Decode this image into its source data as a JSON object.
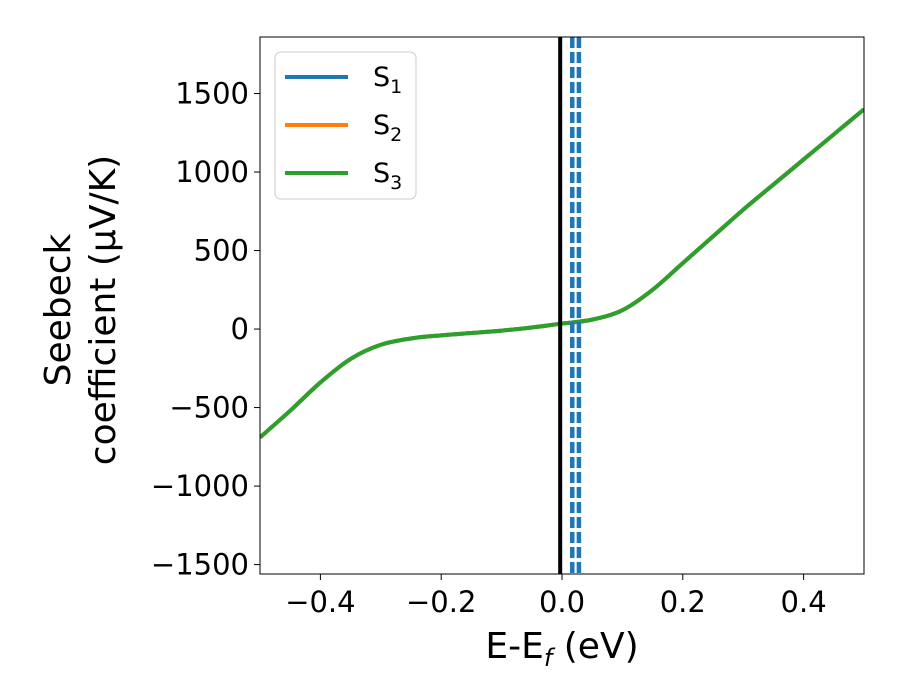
{
  "chart_data": {
    "type": "line",
    "xlabel": "E-E",
    "xlabel_sub": "f",
    "xlabel_unit": " (eV)",
    "ylabel_line1": "Seebeck",
    "ylabel_line2": "coefficient  (μV/K)",
    "xlim": [
      -0.5,
      0.5
    ],
    "ylim": [
      -1560,
      1860
    ],
    "x_ticks": [
      -0.4,
      -0.2,
      0.0,
      0.2,
      0.4
    ],
    "x_tick_labels": [
      "−0.4",
      "−0.2",
      "0.0",
      "0.2",
      "0.4"
    ],
    "y_ticks": [
      -1500,
      -1000,
      -500,
      0,
      500,
      1000,
      1500
    ],
    "y_tick_labels": [
      "−1500",
      "−1000",
      "−500",
      "0",
      "500",
      "1000",
      "1500"
    ],
    "grid": false,
    "legend_position": "top-left",
    "vertical_lines": [
      {
        "x": -0.003,
        "style": "solid",
        "color": "#000000"
      },
      {
        "x": 0.017,
        "style": "dashed",
        "color": "#1f77b4"
      },
      {
        "x": 0.028,
        "style": "dashed",
        "color": "#1f77b4"
      }
    ],
    "x": [
      -0.5,
      -0.45,
      -0.4,
      -0.35,
      -0.3,
      -0.25,
      -0.2,
      -0.15,
      -0.1,
      -0.05,
      0.0,
      0.05,
      0.1,
      0.15,
      0.2,
      0.25,
      0.3,
      0.35,
      0.4,
      0.45,
      0.5
    ],
    "series": [
      {
        "name": "S",
        "sub": "1",
        "color": "#1f77b4",
        "values": [
          -690,
          -520,
          -340,
          -190,
          -100,
          -60,
          -40,
          -25,
          -10,
          10,
          35,
          60,
          120,
          250,
          420,
          590,
          760,
          920,
          1080,
          1240,
          1400
        ]
      },
      {
        "name": "S",
        "sub": "2",
        "color": "#ff7f0e",
        "values": [
          -690,
          -520,
          -340,
          -190,
          -100,
          -60,
          -40,
          -25,
          -10,
          10,
          35,
          60,
          120,
          250,
          420,
          590,
          760,
          920,
          1080,
          1240,
          1400
        ]
      },
      {
        "name": "S",
        "sub": "3",
        "color": "#2ca02c",
        "values": [
          -690,
          -520,
          -340,
          -190,
          -100,
          -60,
          -40,
          -25,
          -10,
          10,
          35,
          60,
          120,
          250,
          420,
          590,
          760,
          920,
          1080,
          1240,
          1400
        ]
      }
    ]
  }
}
